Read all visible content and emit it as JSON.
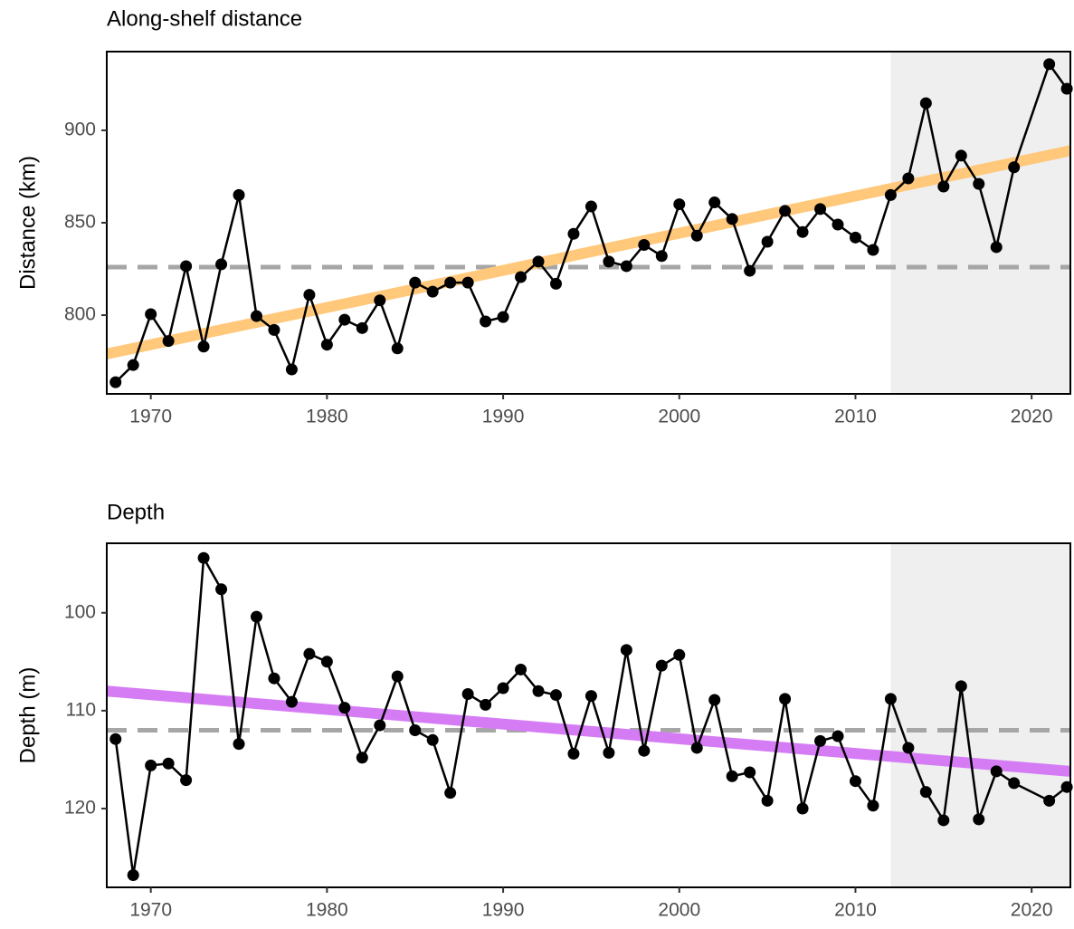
{
  "chart_data": [
    {
      "type": "line",
      "title": "Along-shelf distance",
      "y_label": "Distance (km)",
      "x": [
        1968,
        1969,
        1970,
        1971,
        1972,
        1973,
        1974,
        1975,
        1976,
        1977,
        1978,
        1979,
        1980,
        1981,
        1982,
        1983,
        1984,
        1985,
        1986,
        1987,
        1988,
        1989,
        1990,
        1991,
        1992,
        1993,
        1994,
        1995,
        1996,
        1997,
        1998,
        1999,
        2000,
        2001,
        2002,
        2003,
        2004,
        2005,
        2006,
        2007,
        2008,
        2009,
        2010,
        2011,
        2012,
        2013,
        2014,
        2015,
        2016,
        2017,
        2018,
        2019,
        2021,
        2022
      ],
      "series": [
        {
          "color": "#000000",
          "values": [
            763.7,
            773,
            800.5,
            786,
            826.5,
            783,
            827.5,
            865,
            799.5,
            792,
            770.6,
            811,
            784,
            797.5,
            793,
            808,
            782,
            817.6,
            812.7,
            817.6,
            817.6,
            796.6,
            799,
            820.6,
            829,
            817,
            844,
            858.8,
            829,
            826.5,
            838,
            832,
            860,
            843,
            861,
            852,
            824,
            839.7,
            856.4,
            845,
            857.4,
            849,
            842,
            835.3,
            865,
            874,
            914.7,
            869.6,
            886.3,
            871,
            836.8,
            880,
            935.8,
            922.5
          ]
        }
      ],
      "trend": {
        "x": [
          1967.5,
          2022.2
        ],
        "values": [
          779,
          889
        ],
        "color": "#ffc87a"
      },
      "mean_line": {
        "value": 826,
        "color": "#a6a6a6"
      },
      "shade": [
        2012,
        2022.2
      ],
      "xlim": [
        1967.5,
        2022.2
      ],
      "xticks": [
        1970,
        1980,
        1990,
        2000,
        2010,
        2020
      ],
      "ylim": [
        757.4,
        942.6
      ],
      "yticks": [
        800,
        850,
        900
      ],
      "y_reversed": false
    },
    {
      "type": "line",
      "title": "Depth",
      "y_label": "Depth (m)",
      "x": [
        1968,
        1969,
        1970,
        1971,
        1972,
        1973,
        1974,
        1975,
        1976,
        1977,
        1978,
        1979,
        1980,
        1981,
        1982,
        1983,
        1984,
        1985,
        1986,
        1987,
        1988,
        1989,
        1990,
        1991,
        1992,
        1993,
        1994,
        1995,
        1996,
        1997,
        1998,
        1999,
        2000,
        2001,
        2002,
        2003,
        2004,
        2005,
        2006,
        2007,
        2008,
        2009,
        2010,
        2011,
        2012,
        2013,
        2014,
        2015,
        2016,
        2017,
        2018,
        2019,
        2021,
        2022
      ],
      "series": [
        {
          "color": "#000000",
          "values": [
            112.9,
            126.8,
            115.6,
            115.4,
            117.1,
            94.4,
            97.6,
            113.4,
            100.4,
            106.7,
            109.1,
            104.2,
            105,
            109.7,
            114.8,
            111.5,
            106.5,
            112,
            113,
            118.4,
            108.3,
            109.4,
            107.7,
            105.8,
            108,
            108.4,
            114.4,
            108.5,
            114.3,
            103.8,
            114.1,
            105.4,
            104.3,
            113.8,
            108.9,
            116.7,
            116.3,
            119.2,
            108.8,
            120,
            113.1,
            112.6,
            117.2,
            119.7,
            108.8,
            113.8,
            118.3,
            121.2,
            107.5,
            121.1,
            116.2,
            117.4,
            119.2,
            117.8
          ]
        }
      ],
      "trend": {
        "x": [
          1967.5,
          2022.2
        ],
        "values": [
          108.0,
          116.2
        ],
        "color": "#d57cf5"
      },
      "mean_line": {
        "value": 112,
        "color": "#a6a6a6"
      },
      "shade": [
        2012,
        2022.2
      ],
      "xlim": [
        1967.5,
        2022.2
      ],
      "xticks": [
        1970,
        1980,
        1990,
        2000,
        2010,
        2020
      ],
      "ylim": [
        92.9,
        128.05
      ],
      "yticks": [
        100,
        110,
        120
      ],
      "y_reversed": true
    }
  ]
}
